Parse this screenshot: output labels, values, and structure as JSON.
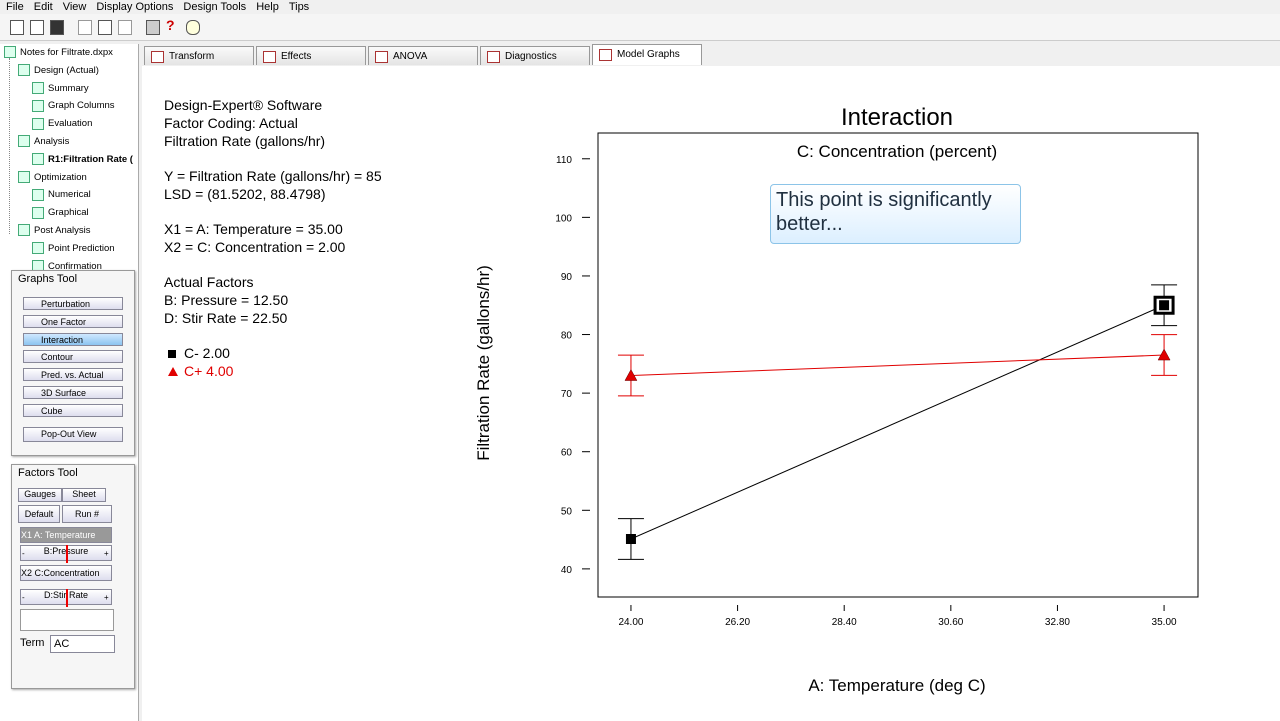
{
  "menu": [
    "File",
    "Edit",
    "View",
    "Display Options",
    "Design Tools",
    "Help",
    "Tips"
  ],
  "tree": [
    "Notes for Filtrate.dxpx",
    "Design (Actual)",
    "Summary",
    "Graph Columns",
    "Evaluation",
    "Analysis",
    "R1:Filtration Rate (",
    "Optimization",
    "Numerical",
    "Graphical",
    "Post Analysis",
    "Point Prediction",
    "Confirmation"
  ],
  "graphs_tool": {
    "title": "Graphs Tool",
    "buttons": [
      "Perturbation",
      "One Factor",
      "Interaction",
      "Contour",
      "Pred. vs. Actual",
      "3D Surface",
      "Cube"
    ],
    "popout": "Pop-Out View"
  },
  "factors_tool": {
    "title": "Factors Tool",
    "gauges": "Gauges",
    "sheet": "Sheet",
    "default": "Default",
    "run": "Run #",
    "x1": "X1 A: Temperature",
    "pressure": "B:Pressure",
    "x2": "X2 C:Concentration",
    "stir": "D:Stir Rate",
    "minus": "-",
    "plus": "+",
    "term_label": "Term",
    "term": "AC"
  },
  "tabs": [
    "Transform",
    "Effects",
    "ANOVA",
    "Diagnostics",
    "Model Graphs"
  ],
  "info": [
    [
      "Design-Expert® Software",
      "Factor Coding: Actual",
      "Filtration Rate (gallons/hr)"
    ],
    [
      "Y = Filtration Rate (gallons/hr) = 85",
      "LSD = (81.5202, 88.4798)"
    ],
    [
      "X1 = A: Temperature = 35.00",
      "X2 = C: Concentration = 2.00"
    ],
    [
      "Actual Factors",
      "B: Pressure = 12.50",
      "D: Stir Rate = 22.50"
    ]
  ],
  "chart_data": {
    "type": "line",
    "title": "Interaction",
    "subtitle": "C: Concentration (percent)",
    "annotation": "This point is significantly better...",
    "x_label": "A: Temperature (deg C)",
    "y_label": "Filtration Rate (gallons/hr)",
    "x": [
      24,
      35
    ],
    "series": [
      {
        "name": "C- 2.00",
        "color": "#000000",
        "marker": "square",
        "values": [
          45.1,
          85
        ],
        "errors": [
          3.48,
          3.48
        ]
      },
      {
        "name": "C+ 4.00",
        "color": "#e00000",
        "marker": "triangle",
        "values": [
          73,
          76.5
        ],
        "errors": [
          3.48,
          3.48
        ]
      }
    ],
    "xlim": [
      23.32,
      35.7
    ],
    "ylim": [
      35.2,
      114.4
    ],
    "xticks": [
      {
        "value": 24,
        "label": "24.00"
      },
      {
        "value": 26.2,
        "label": "26.20"
      },
      {
        "value": 28.4,
        "label": "28.40"
      },
      {
        "value": 30.6,
        "label": "30.60"
      },
      {
        "value": 32.8,
        "label": "32.80"
      },
      {
        "value": 35,
        "label": "35.00"
      }
    ],
    "yticks": [
      40,
      50,
      60,
      70,
      80,
      90,
      100,
      110
    ]
  }
}
